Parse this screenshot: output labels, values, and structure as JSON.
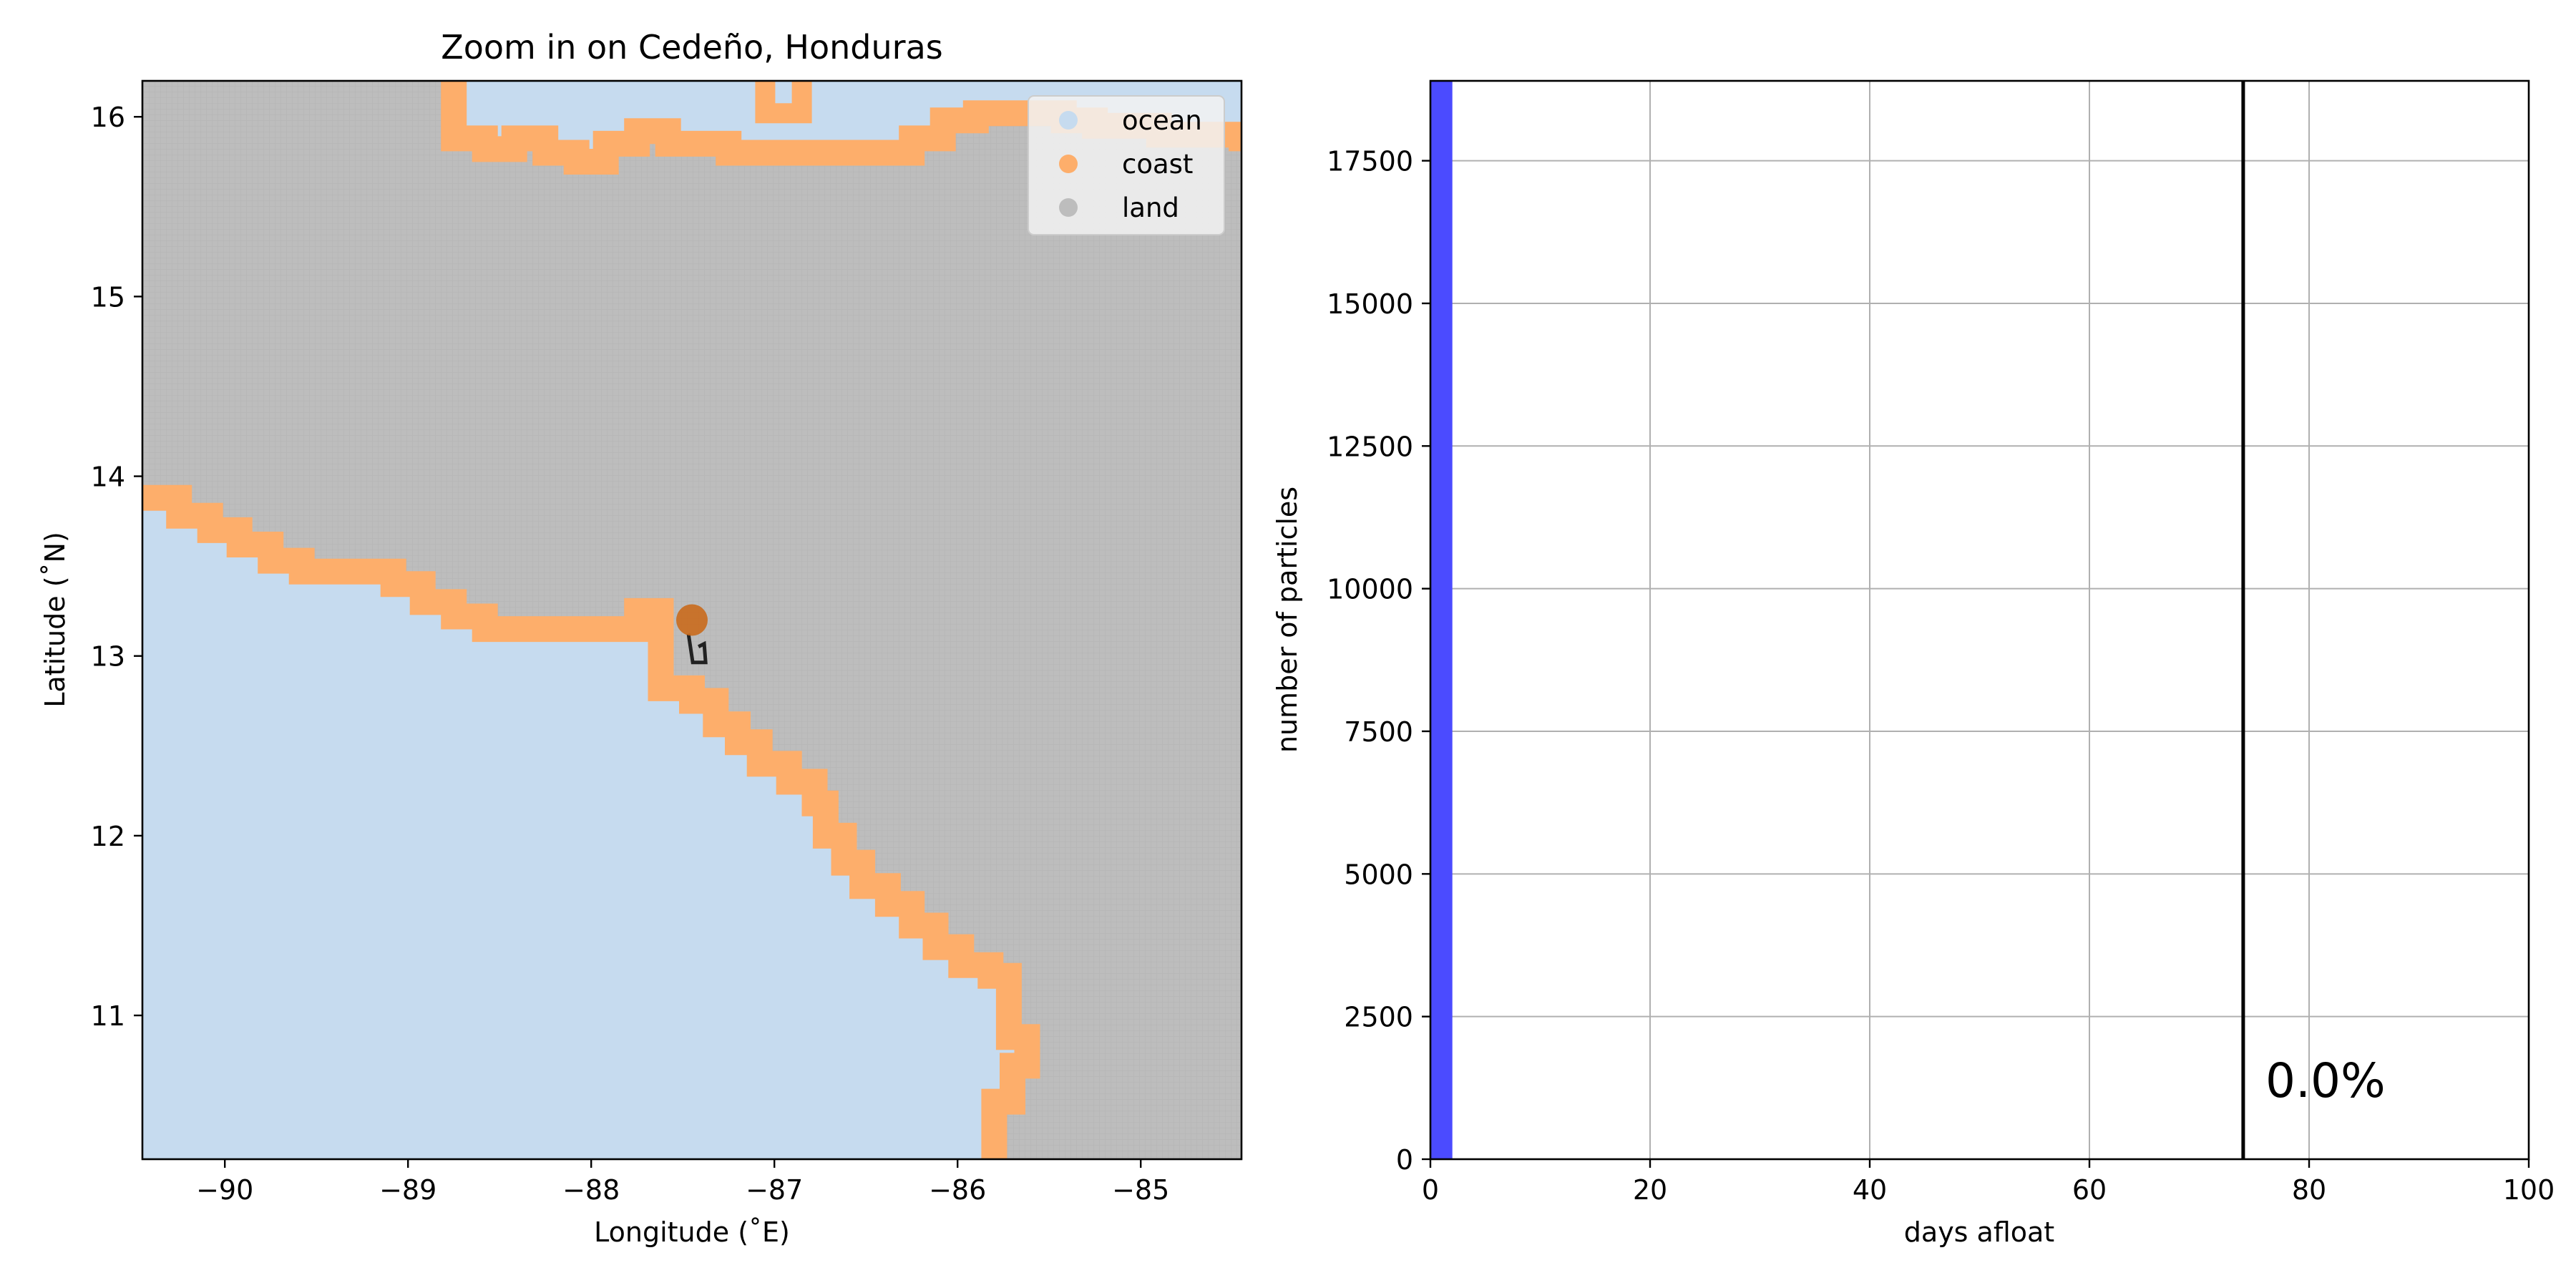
{
  "chart_data": [
    {
      "type": "map",
      "title": "Zoom in on Cedeño, Honduras",
      "xlabel": "Longitude (˚E)",
      "ylabel": "Latitude (˚N)",
      "xlim": [
        -90.45,
        -84.45
      ],
      "ylim": [
        10.2,
        16.2
      ],
      "xticks": [
        -90,
        -89,
        -88,
        -87,
        -86,
        -85
      ],
      "xtick_labels": [
        "−90",
        "−89",
        "−88",
        "−87",
        "−86",
        "−85"
      ],
      "yticks": [
        11,
        12,
        13,
        14,
        15,
        16
      ],
      "ytick_labels": [
        "11",
        "12",
        "13",
        "14",
        "15",
        "16"
      ],
      "legend": {
        "position": "top-right",
        "entries": [
          {
            "label": "ocean",
            "color": "#c6dbef"
          },
          {
            "label": "coast",
            "color": "#fdae6b"
          },
          {
            "label": "land",
            "color": "#bdbdbd"
          }
        ]
      },
      "cell_size_deg": 0.166667,
      "coast_south": [
        [
          -90.45,
          13.88
        ],
        [
          -90.25,
          13.78
        ],
        [
          -90.08,
          13.7
        ],
        [
          -89.92,
          13.62
        ],
        [
          -89.75,
          13.53
        ],
        [
          -89.58,
          13.47
        ],
        [
          -89.42,
          13.47
        ],
        [
          -89.25,
          13.47
        ],
        [
          -89.08,
          13.4
        ],
        [
          -88.92,
          13.3
        ],
        [
          -88.75,
          13.22
        ],
        [
          -88.58,
          13.15
        ],
        [
          -88.42,
          13.15
        ],
        [
          -88.25,
          13.15
        ],
        [
          -88.08,
          13.15
        ],
        [
          -87.9,
          13.15
        ],
        [
          -87.75,
          13.25
        ],
        [
          -87.62,
          13.2
        ],
        [
          -87.62,
          13.0
        ],
        [
          -87.62,
          12.82
        ],
        [
          -87.45,
          12.75
        ],
        [
          -87.32,
          12.62
        ],
        [
          -87.2,
          12.52
        ],
        [
          -87.08,
          12.4
        ],
        [
          -86.92,
          12.3
        ],
        [
          -86.78,
          12.18
        ],
        [
          -86.72,
          12.0
        ],
        [
          -86.62,
          11.85
        ],
        [
          -86.52,
          11.72
        ],
        [
          -86.38,
          11.62
        ],
        [
          -86.25,
          11.5
        ],
        [
          -86.12,
          11.38
        ],
        [
          -85.98,
          11.28
        ],
        [
          -85.82,
          11.22
        ],
        [
          -85.72,
          11.05
        ],
        [
          -85.72,
          10.88
        ],
        [
          -85.62,
          10.72
        ],
        [
          -85.7,
          10.52
        ],
        [
          -85.8,
          10.38
        ],
        [
          -85.8,
          10.2
        ]
      ],
      "coast_north": [
        [
          -88.75,
          16.2
        ],
        [
          -88.75,
          16.0
        ],
        [
          -88.75,
          15.88
        ],
        [
          -88.58,
          15.82
        ],
        [
          -88.42,
          15.88
        ],
        [
          -88.25,
          15.8
        ],
        [
          -88.08,
          15.75
        ],
        [
          -87.92,
          15.85
        ],
        [
          -87.75,
          15.92
        ],
        [
          -87.58,
          15.85
        ],
        [
          -87.42,
          15.85
        ],
        [
          -87.25,
          15.8
        ],
        [
          -87.08,
          15.8
        ],
        [
          -86.92,
          15.8
        ],
        [
          -86.75,
          15.8
        ],
        [
          -86.58,
          15.8
        ],
        [
          -86.38,
          15.8
        ],
        [
          -86.25,
          15.88
        ],
        [
          -86.08,
          15.98
        ],
        [
          -85.9,
          16.02
        ],
        [
          -85.75,
          16.02
        ],
        [
          -85.58,
          16.02
        ],
        [
          -85.42,
          15.98
        ],
        [
          -85.25,
          15.95
        ],
        [
          -85.08,
          15.95
        ],
        [
          -84.9,
          15.9
        ],
        [
          -84.7,
          15.9
        ],
        [
          -84.45,
          15.88
        ]
      ],
      "coast_north_bump": [
        [
          -87.05,
          16.2
        ],
        [
          -87.05,
          16.02
        ],
        [
          -86.95,
          16.02
        ],
        [
          -86.85,
          16.02
        ],
        [
          -86.85,
          16.2
        ]
      ],
      "coast_north_corner": [
        [
          -88.62,
          16.2
        ],
        [
          -88.62,
          16.15
        ]
      ],
      "release_point": {
        "lon": -87.45,
        "lat": 13.2,
        "color": "#c96a1c"
      },
      "particle_marker": {
        "lon": -87.43,
        "lat": 13.02
      }
    },
    {
      "type": "bar",
      "xlabel": "days afloat",
      "ylabel": "number of particles",
      "xlim": [
        0,
        100
      ],
      "ylim": [
        0,
        18900
      ],
      "grid": true,
      "xticks": [
        0,
        20,
        40,
        60,
        80,
        100
      ],
      "xtick_labels": [
        "0",
        "20",
        "40",
        "60",
        "80",
        "100"
      ],
      "yticks": [
        0,
        2500,
        5000,
        7500,
        10000,
        12500,
        15000,
        17500
      ],
      "ytick_labels": [
        "0",
        "2500",
        "5000",
        "7500",
        "10000",
        "12500",
        "15000",
        "17500"
      ],
      "bars": [
        {
          "x0": 0,
          "x1": 2,
          "value": 18900
        }
      ],
      "bar_color": "#4b4bff",
      "vline_x": 74,
      "annotation": "0.0%"
    }
  ]
}
